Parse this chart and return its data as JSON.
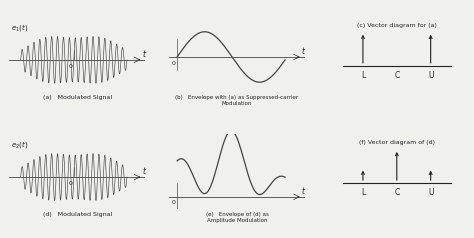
{
  "background_color": "#f0f0ed",
  "text_color": "#222222",
  "signal_color": "#444444",
  "line_color": "#444444",
  "labels_row1": [
    "(a)   Modulated Signal",
    "(b)   Envelope with (a) as Suppressed-carrier\nModulation",
    "(c) Vector diagram for (a)"
  ],
  "labels_row2": [
    "(d)   Modulated Signal",
    "(e)   Envelope of (d) as\nAmplitude Modulation",
    "(f) Vector diagram of (d)"
  ],
  "vector_labels": [
    "L",
    "C",
    "U"
  ],
  "ylabel1": "e_1(t)",
  "ylabel2": "e_2(t)",
  "figsize": [
    4.74,
    2.38
  ],
  "dpi": 100
}
